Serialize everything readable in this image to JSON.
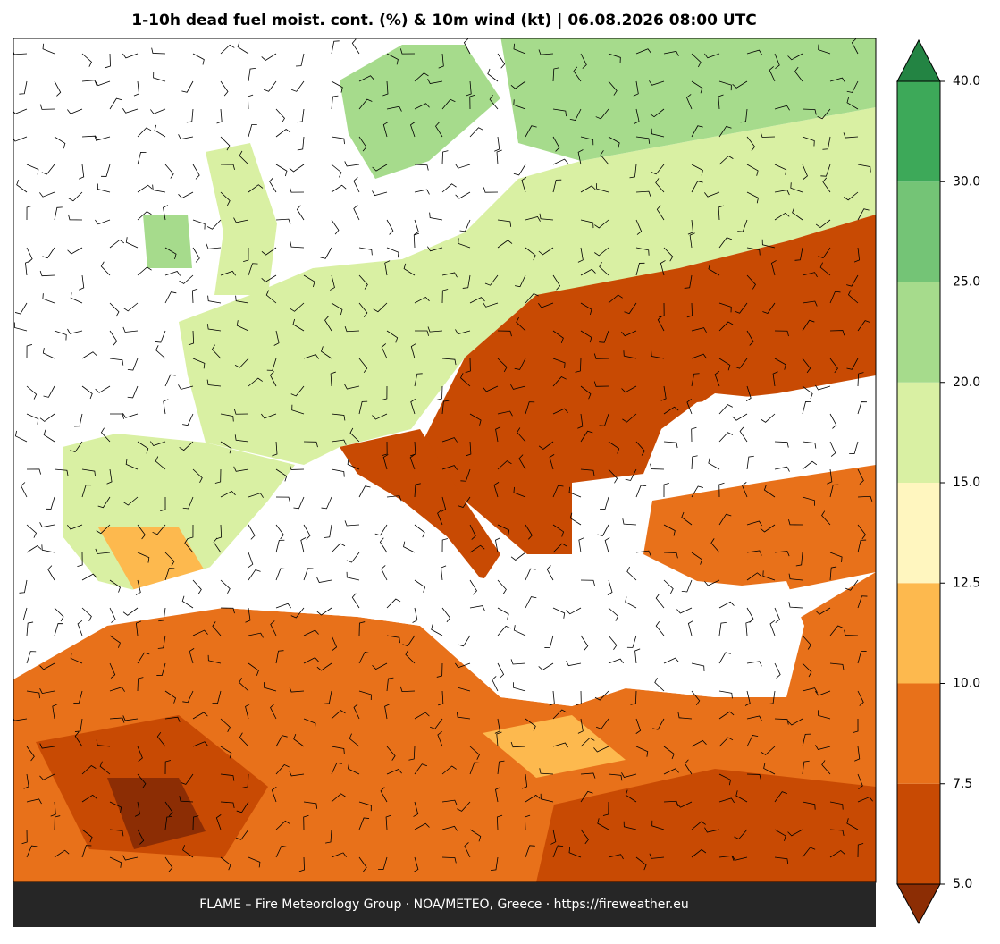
{
  "title": "1-10h dead fuel moist. cont. (%) & 10m wind (kt)  |  06.08.2026 08:00 UTC",
  "footer": "FLAME – Fire Meteorology Group · NOA/METEO, Greece · https://fireweather.eu",
  "colorbar": {
    "ticks": [
      {
        "value": 5,
        "label": "5.0"
      },
      7.5,
      {
        "value": 10,
        "label": "10.0"
      },
      12.5,
      {
        "value": 15,
        "label": "15.0"
      },
      {
        "value": 20,
        "label": "20.0"
      },
      {
        "value": 25,
        "label": "25.0"
      },
      {
        "value": 30,
        "label": "30.0"
      },
      {
        "value": 40,
        "label": "40.0"
      }
    ],
    "colors": [
      "#c84a03",
      "#e8711a",
      "#fdb94e",
      "#fff6bf",
      "#d9f0a3",
      "#a6db8c",
      "#74c476",
      "#3da959"
    ],
    "under_color": "#8c2d04",
    "over_color": "#238443",
    "extend": "both"
  }
}
